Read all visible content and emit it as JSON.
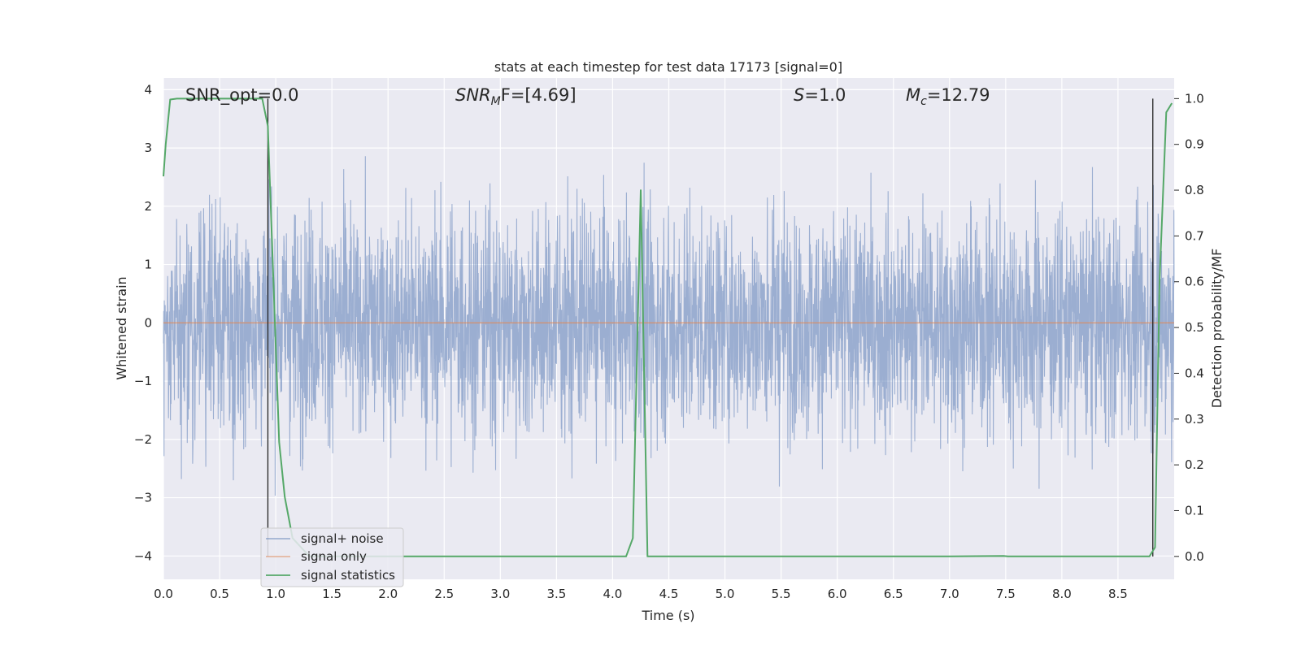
{
  "chart_data": {
    "type": "line",
    "title": "stats at each timestep for test data 17173 [signal=0]",
    "xlabel": "Time (s)",
    "ylabel": "Whitened strain",
    "y2label": "Detection probability/MF",
    "xlim": [
      0.0,
      9.0
    ],
    "ylim": [
      -4.4,
      4.2
    ],
    "y2lim": [
      -0.05,
      1.045
    ],
    "xticks": [
      "0.0",
      "0.5",
      "1.0",
      "1.5",
      "2.0",
      "2.5",
      "3.0",
      "3.5",
      "4.0",
      "4.5",
      "5.0",
      "5.5",
      "6.0",
      "6.5",
      "7.0",
      "7.5",
      "8.0",
      "8.5"
    ],
    "xtick_values": [
      0.0,
      0.5,
      1.0,
      1.5,
      2.0,
      2.5,
      3.0,
      3.5,
      4.0,
      4.5,
      5.0,
      5.5,
      6.0,
      6.5,
      7.0,
      7.5,
      8.0,
      8.5
    ],
    "yticks": [
      "−4",
      "−3",
      "−2",
      "−1",
      "0",
      "1",
      "2",
      "3",
      "4"
    ],
    "ytick_values": [
      -4,
      -3,
      -2,
      -1,
      0,
      1,
      2,
      3,
      4
    ],
    "y2ticks": [
      "0.0",
      "0.1",
      "0.2",
      "0.3",
      "0.4",
      "0.5",
      "0.6",
      "0.7",
      "0.8",
      "0.9",
      "1.0"
    ],
    "y2tick_values": [
      0.0,
      0.1,
      0.2,
      0.3,
      0.4,
      0.5,
      0.6,
      0.7,
      0.8,
      0.9,
      1.0
    ],
    "grid": true,
    "legend_position": "bottom-left",
    "annotations": {
      "snr_opt": "SNR_opt=0.0",
      "snr_mf_main": "SNR",
      "snr_mf_sub": "M",
      "snr_mf_rest": "F=[4.69]",
      "s_label": "S",
      "s_value": "=1.0",
      "mc_main": "M",
      "mc_sub": "c",
      "mc_value": "=12.79"
    },
    "series": [
      {
        "name": "signal+ noise",
        "axis": "left",
        "color": "#4c72b0",
        "description_envelope": {
          "typical_range": [
            -1.7,
            1.5
          ],
          "peak_max": 3.85,
          "peak_min": -4.0
        }
      },
      {
        "name": "signal only",
        "axis": "left",
        "color": "#dd8452",
        "x": [
          0.0,
          9.0
        ],
        "y": [
          0.0,
          0.0
        ]
      },
      {
        "name": "signal statistics",
        "axis": "right",
        "color": "#55a868",
        "x": [
          0.0,
          0.02,
          0.06,
          0.12,
          0.3,
          0.5,
          0.7,
          0.88,
          0.93,
          0.98,
          1.03,
          1.08,
          1.15,
          1.3,
          2.0,
          3.0,
          4.0,
          4.12,
          4.18,
          4.25,
          4.31,
          4.4,
          5.0,
          6.0,
          7.0,
          7.48,
          7.52,
          8.0,
          8.78,
          8.83,
          8.87,
          8.93,
          8.98
        ],
        "y": [
          0.83,
          0.9,
          0.998,
          1.0,
          1.0,
          1.0,
          1.0,
          1.0,
          0.94,
          0.6,
          0.25,
          0.13,
          0.04,
          0.0,
          0.0,
          0.0,
          0.0,
          0.0,
          0.04,
          0.8,
          0.0,
          0.0,
          0.0,
          0.0,
          0.0,
          0.001,
          0.0,
          0.0,
          0.0,
          0.02,
          0.6,
          0.97,
          0.99
        ]
      }
    ],
    "vertical_markers": [
      0.93,
      8.81
    ]
  }
}
